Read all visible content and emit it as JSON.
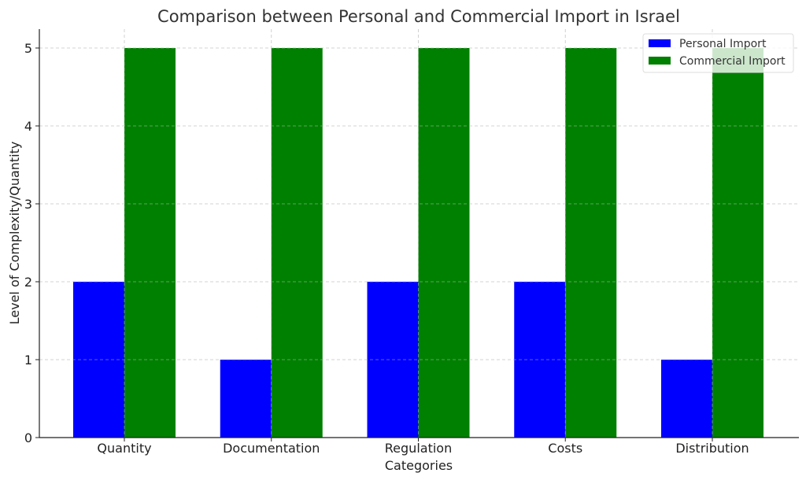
{
  "chart_data": {
    "type": "bar",
    "title": "Comparison between Personal and Commercial Import in Israel",
    "xlabel": "Categories",
    "ylabel": "Level of Complexity/Quantity",
    "categories": [
      "Quantity",
      "Documentation",
      "Regulation",
      "Costs",
      "Distribution"
    ],
    "series": [
      {
        "name": "Personal Import",
        "color": "#0000ff",
        "values": [
          2,
          1,
          2,
          2,
          1
        ]
      },
      {
        "name": "Commercial Import",
        "color": "#008000",
        "values": [
          5,
          5,
          5,
          5,
          5
        ]
      }
    ],
    "ylim": [
      0,
      5.25
    ],
    "yticks": [
      0,
      1,
      2,
      3,
      4,
      5
    ],
    "grid": true,
    "legend": "top-right"
  }
}
